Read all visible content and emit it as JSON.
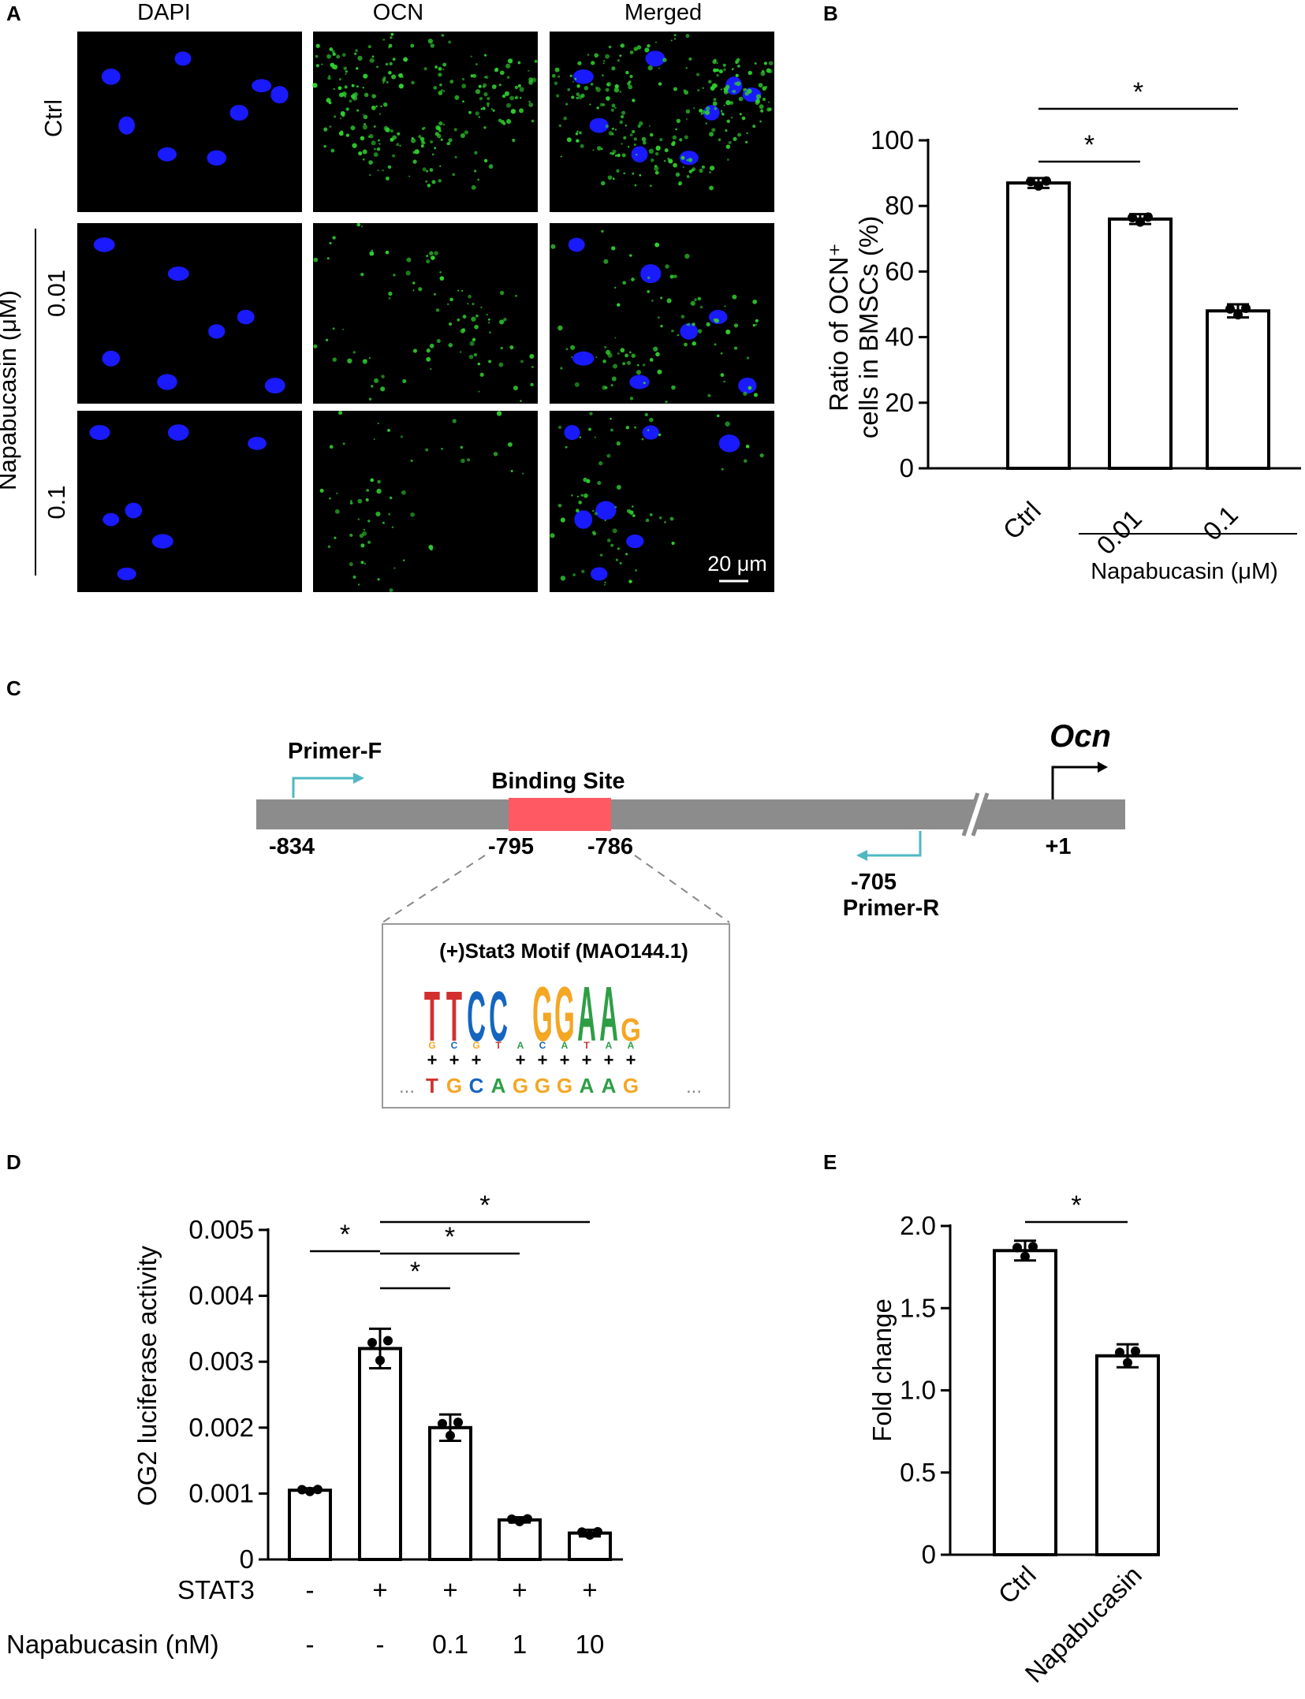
{
  "panel_A": {
    "letter": "A",
    "columns": [
      "DAPI",
      "OCN",
      "Merged"
    ],
    "rows": [
      "Ctrl",
      "0.01",
      "0.1"
    ],
    "treatment_label": "Napabucasin (μM)",
    "scale_bar": "20 μm",
    "colors": {
      "dapi": "#1a1aff",
      "ocn": "#2fd12f",
      "background": "#000000"
    }
  },
  "chart_data": [
    {
      "id": "B",
      "panel": "B",
      "type": "bar",
      "categories": [
        "Ctrl",
        "0.01",
        "0.1"
      ],
      "values": [
        87,
        76,
        48
      ],
      "errors": [
        1.5,
        1.5,
        2
      ],
      "ylabel_line1": "Ratio of OCN⁺",
      "ylabel_line2": "cells in BMSCs (%)",
      "ylim": [
        0,
        100
      ],
      "yticks": [
        "0",
        "20",
        "40",
        "60",
        "80",
        "100"
      ],
      "group_label": "Napabucasin (μM)",
      "significance": [
        {
          "from": 0,
          "to": 1,
          "label": "*"
        },
        {
          "from": 0,
          "to": 2,
          "label": "*"
        }
      ]
    },
    {
      "id": "D",
      "panel": "D",
      "type": "bar",
      "categories": [
        "1",
        "2",
        "3",
        "4",
        "5"
      ],
      "values": [
        0.00105,
        0.0032,
        0.002,
        0.0006,
        0.0004
      ],
      "errors": [
        3e-05,
        0.0003,
        0.0002,
        4e-05,
        5e-05
      ],
      "ylabel": "OG2 luciferase activity",
      "ylim": [
        0,
        0.005
      ],
      "yticks": [
        "0",
        "0.001",
        "0.002",
        "0.003",
        "0.004",
        "0.005"
      ],
      "row_stat3_label": "STAT3",
      "row_stat3": [
        "-",
        "+",
        "+",
        "+",
        "+"
      ],
      "row_napa_label": "Napabucasin (nM)",
      "row_napa": [
        "-",
        "-",
        "0.1",
        "1",
        "10"
      ],
      "significance": [
        {
          "from": 0,
          "to": 1,
          "label": "*"
        },
        {
          "from": 1,
          "to": 2,
          "label": "*"
        },
        {
          "from": 1,
          "to": 3,
          "label": "*"
        },
        {
          "from": 1,
          "to": 4,
          "label": "*"
        }
      ]
    },
    {
      "id": "E",
      "panel": "E",
      "type": "bar",
      "categories": [
        "Ctrl",
        "Napabucasin"
      ],
      "values": [
        1.85,
        1.21
      ],
      "errors": [
        0.06,
        0.07
      ],
      "ylabel": "Fold change",
      "ylim": [
        0,
        2.0
      ],
      "yticks": [
        "0",
        "0.5",
        "1.0",
        "1.5",
        "2.0"
      ],
      "significance": [
        {
          "from": 0,
          "to": 1,
          "label": "*"
        }
      ]
    }
  ],
  "panel_C": {
    "letter": "C",
    "gene": "Ocn",
    "primer_f": "Primer-F",
    "primer_r": "Primer-R",
    "binding_site": "Binding Site",
    "pos_834": "-834",
    "pos_795": "-795",
    "pos_786": "-786",
    "pos_705": "-705",
    "pos_1": "+1",
    "motif_title": "(+)Stat3 Motif (MAO144.1)",
    "motif_big": [
      "T",
      "T",
      "C",
      "C",
      "",
      "G",
      "G",
      "A",
      "A",
      "G"
    ],
    "motif_small": [
      "G",
      "C",
      "G",
      "T",
      "A",
      "C",
      "A",
      "T",
      "A",
      "A"
    ],
    "pluses": [
      "+",
      "+",
      "+",
      "",
      "+",
      "+",
      "+",
      "+",
      "+",
      "+"
    ],
    "sequence": [
      "T",
      "G",
      "C",
      "A",
      "G",
      "G",
      "G",
      "A",
      "A",
      "G"
    ],
    "sequence_prefix": "...",
    "sequence_suffix": "...",
    "colors": {
      "promoter": "#8c8c8c",
      "binding_site": "#ff5a64",
      "primer": "#4fb8c4",
      "T": "#d32f2f",
      "C": "#1565c0",
      "G": "#f5a623",
      "A": "#2e9e46"
    }
  },
  "panel_letters": {
    "A": "A",
    "B": "B",
    "C": "C",
    "D": "D",
    "E": "E"
  }
}
